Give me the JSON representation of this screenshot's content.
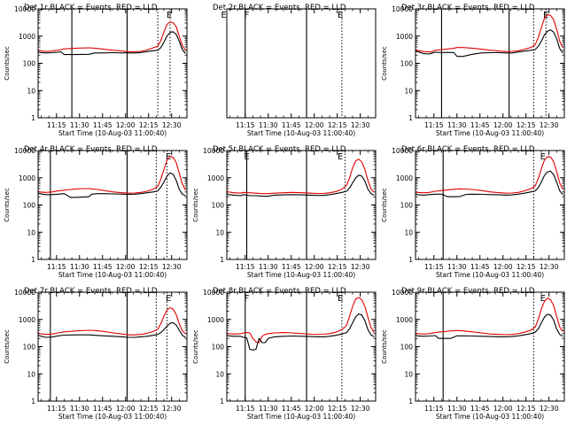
{
  "chart_data": [
    {
      "type": "line",
      "title": "Det 1r  BLACK = Events, RED = LLD",
      "xlabel": "Start Time (10-Aug-03 11:00:40)",
      "ylabel": "Counts/sec",
      "x_tick_labels": [
        "11:15",
        "11:30",
        "11:45",
        "12:00",
        "12:15",
        "12:30"
      ],
      "y_tick_labels": [
        "1",
        "10",
        "100",
        "1000",
        "10000"
      ],
      "xlim_min": [
        3,
        100
      ],
      "ylim": [
        1,
        10000
      ],
      "y_scale": "log",
      "solid_markers_min": [
        25,
        61
      ],
      "dotted_markers_min": [
        81,
        89
      ],
      "flag_label": "E",
      "flag_min": 88.5,
      "x_min": [
        0,
        4,
        8,
        12,
        16,
        18,
        20,
        28,
        36,
        40,
        46,
        52,
        58,
        60,
        62,
        66,
        70,
        74,
        78,
        81,
        83,
        85,
        87,
        89,
        91,
        93,
        95,
        97,
        99
      ],
      "series": [
        {
          "name": "Events",
          "color": "#000000",
          "values": [
            270,
            250,
            240,
            245,
            255,
            265,
            210,
            210,
            215,
            240,
            240,
            245,
            240,
            245,
            240,
            240,
            250,
            270,
            290,
            300,
            380,
            600,
            1000,
            1350,
            1450,
            1150,
            650,
            320,
            230
          ]
        },
        {
          "name": "LLD",
          "color": "#e00000",
          "values": [
            320,
            290,
            270,
            280,
            300,
            320,
            340,
            360,
            370,
            360,
            330,
            300,
            280,
            270,
            265,
            265,
            275,
            310,
            370,
            420,
            700,
            1400,
            2700,
            3300,
            3100,
            2200,
            1000,
            450,
            300
          ]
        }
      ]
    },
    {
      "type": "line",
      "title": "Det 2r  BLACK = Events, RED = LLD",
      "xlabel": "Start Time (10-Aug-03 11:00:40)",
      "ylabel": "",
      "x_tick_labels": [
        "11:15",
        "11:30",
        "11:45",
        "12:00",
        "12:15",
        "12:30"
      ],
      "y_tick_labels": [],
      "xlim_min": [
        3,
        100
      ],
      "ylim": [
        1,
        10000
      ],
      "y_scale": "log",
      "solid_markers_min": [
        15,
        55
      ],
      "dotted_markers_min": [
        78
      ],
      "flag_labels": [
        "E",
        "F",
        "E"
      ],
      "flag_min": [
        1,
        16,
        77
      ],
      "x_min": [],
      "series": []
    },
    {
      "type": "line",
      "title": "Det 3r  BLACK = Events, RED = LLD",
      "xlabel": "Start Time (10-Aug-03 11:00:40)",
      "ylabel": "Counts/sec",
      "x_tick_labels": [
        "11:15",
        "11:30",
        "11:45",
        "12:00",
        "12:15",
        "12:30"
      ],
      "y_tick_labels": [
        "1",
        "10",
        "100",
        "1000",
        "10000"
      ],
      "xlim_min": [
        3,
        100
      ],
      "ylim": [
        1,
        10000
      ],
      "y_scale": "log",
      "solid_markers_min": [
        20,
        64
      ],
      "dotted_markers_min": [
        80,
        88
      ],
      "flag_label": "E",
      "flag_min": 88,
      "x_min": [
        0,
        4,
        8,
        12,
        14,
        16,
        20,
        28,
        30,
        34,
        40,
        46,
        52,
        58,
        62,
        66,
        70,
        74,
        78,
        81,
        83,
        85,
        87,
        89,
        91,
        93,
        95,
        97,
        99
      ],
      "series": [
        {
          "name": "Events",
          "color": "#000000",
          "values": [
            280,
            270,
            230,
            220,
            240,
            255,
            250,
            250,
            180,
            180,
            215,
            240,
            245,
            245,
            240,
            240,
            260,
            280,
            300,
            320,
            420,
            650,
            1100,
            1500,
            1700,
            1400,
            800,
            350,
            240
          ]
        },
        {
          "name": "LLD",
          "color": "#e00000",
          "values": [
            330,
            300,
            270,
            260,
            270,
            300,
            320,
            360,
            380,
            380,
            360,
            330,
            300,
            280,
            270,
            275,
            290,
            330,
            380,
            480,
            900,
            2000,
            4500,
            6000,
            5800,
            4000,
            1800,
            650,
            380
          ]
        }
      ]
    },
    {
      "type": "line",
      "title": "Det 4r  BLACK = Events, RED = LLD",
      "xlabel": "Start Time (10-Aug-03 11:00:40)",
      "ylabel": "Counts/sec",
      "x_tick_labels": [
        "11:15",
        "11:30",
        "11:45",
        "12:00",
        "12:15",
        "12:30"
      ],
      "y_tick_labels": [
        "1",
        "10",
        "100",
        "1000",
        "10000"
      ],
      "xlim_min": [
        3,
        100
      ],
      "ylim": [
        1,
        10000
      ],
      "y_scale": "log",
      "solid_markers_min": [
        11,
        61
      ],
      "dotted_markers_min": [
        80,
        87
      ],
      "flag_label": "E",
      "flag_min": 88,
      "x_min": [
        0,
        4,
        8,
        12,
        16,
        20,
        24,
        28,
        32,
        36,
        38,
        42,
        46,
        52,
        58,
        62,
        66,
        70,
        74,
        78,
        81,
        83,
        85,
        87,
        89,
        91,
        93,
        95,
        97,
        99
      ],
      "series": [
        {
          "name": "Events",
          "color": "#000000",
          "values": [
            270,
            260,
            240,
            240,
            250,
            260,
            190,
            190,
            195,
            200,
            250,
            260,
            260,
            255,
            250,
            245,
            250,
            260,
            280,
            300,
            330,
            450,
            700,
            1150,
            1500,
            1350,
            800,
            380,
            250,
            220
          ]
        },
        {
          "name": "LLD",
          "color": "#e00000",
          "values": [
            320,
            300,
            290,
            300,
            330,
            350,
            370,
            390,
            400,
            400,
            390,
            370,
            340,
            300,
            280,
            270,
            275,
            290,
            320,
            380,
            480,
            900,
            2000,
            4500,
            6000,
            5600,
            3600,
            1500,
            600,
            350
          ]
        }
      ]
    },
    {
      "type": "line",
      "title": "Det 5r  BLACK = Events, RED = LLD",
      "xlabel": "Start Time (10-Aug-03 11:00:40)",
      "ylabel": "Counts/sec",
      "x_tick_labels": [
        "11:15",
        "11:30",
        "11:45",
        "12:00",
        "12:15",
        "12:30"
      ],
      "y_tick_labels": [
        "1",
        "10",
        "100",
        "1000",
        "10000"
      ],
      "xlim_min": [
        3,
        100
      ],
      "ylim": [
        1,
        10000
      ],
      "y_scale": "log",
      "solid_markers_min": [
        16,
        55
      ],
      "dotted_markers_min": [
        80
      ],
      "flag_labels": [
        "E",
        "E"
      ],
      "flag_min": [
        16,
        77
      ],
      "x_min": [
        0,
        4,
        8,
        12,
        14,
        18,
        22,
        26,
        30,
        34,
        40,
        46,
        52,
        58,
        62,
        66,
        70,
        74,
        78,
        81,
        83,
        85,
        87,
        89,
        91,
        93,
        95,
        97,
        99
      ],
      "series": [
        {
          "name": "Events",
          "color": "#000000",
          "values": [
            270,
            240,
            230,
            220,
            240,
            220,
            220,
            210,
            210,
            230,
            235,
            240,
            235,
            230,
            225,
            225,
            240,
            260,
            290,
            320,
            420,
            650,
            1000,
            1250,
            1150,
            750,
            380,
            260,
            230
          ]
        },
        {
          "name": "LLD",
          "color": "#e00000",
          "values": [
            330,
            300,
            280,
            270,
            290,
            280,
            270,
            260,
            260,
            270,
            280,
            290,
            280,
            270,
            265,
            265,
            280,
            310,
            380,
            520,
            1000,
            2300,
            4200,
            4800,
            3800,
            2000,
            800,
            380,
            300
          ]
        }
      ]
    },
    {
      "type": "line",
      "title": "Det 6r  BLACK = Events, RED = LLD",
      "xlabel": "Start Time (10-Aug-03 11:00:40)",
      "ylabel": "Counts/sec",
      "x_tick_labels": [
        "11:15",
        "11:30",
        "11:45",
        "12:00",
        "12:15",
        "12:30"
      ],
      "y_tick_labels": [
        "1",
        "10",
        "100",
        "1000",
        "10000"
      ],
      "xlim_min": [
        3,
        100
      ],
      "ylim": [
        1,
        10000
      ],
      "y_scale": "log",
      "solid_markers_min": [
        21
      ],
      "dotted_markers_min": [
        80
      ],
      "flag_label": "E",
      "flag_min": 86,
      "x_min": [
        0,
        4,
        8,
        12,
        16,
        20,
        24,
        28,
        32,
        36,
        40,
        46,
        52,
        58,
        62,
        66,
        70,
        74,
        78,
        81,
        83,
        85,
        87,
        89,
        91,
        93,
        95,
        97,
        99
      ],
      "series": [
        {
          "name": "Events",
          "color": "#000000",
          "values": [
            270,
            240,
            230,
            240,
            250,
            250,
            200,
            200,
            205,
            245,
            250,
            245,
            240,
            235,
            230,
            235,
            250,
            270,
            300,
            330,
            430,
            700,
            1200,
            1650,
            1750,
            1300,
            700,
            330,
            240
          ]
        },
        {
          "name": "LLD",
          "color": "#e00000",
          "values": [
            320,
            290,
            280,
            290,
            320,
            340,
            360,
            380,
            390,
            385,
            370,
            340,
            300,
            280,
            270,
            275,
            290,
            330,
            390,
            500,
            950,
            2100,
            4400,
            6000,
            5800,
            3900,
            1700,
            650,
            380
          ]
        }
      ]
    },
    {
      "type": "line",
      "title": "Det 7r  BLACK = Events, RED = LLD",
      "xlabel": "Start Time (10-Aug-03 11:00:40)",
      "ylabel": "Counts/sec",
      "x_tick_labels": [
        "11:15",
        "11:30",
        "11:45",
        "12:00",
        "12:15",
        "12:30"
      ],
      "y_tick_labels": [
        "1",
        "10",
        "100",
        "1000",
        "10000"
      ],
      "xlim_min": [
        3,
        100
      ],
      "ylim": [
        1,
        10000
      ],
      "y_scale": "log",
      "solid_markers_min": [
        11,
        61
      ],
      "dotted_markers_min": [
        80,
        87
      ],
      "flag_label": "E",
      "flag_min": 88,
      "x_min": [
        0,
        4,
        8,
        12,
        16,
        20,
        28,
        36,
        40,
        46,
        52,
        58,
        62,
        66,
        70,
        74,
        78,
        81,
        83,
        85,
        87,
        89,
        91,
        93,
        95,
        97,
        99
      ],
      "series": [
        {
          "name": "Events",
          "color": "#000000",
          "values": [
            270,
            250,
            220,
            225,
            250,
            265,
            270,
            270,
            260,
            250,
            240,
            230,
            220,
            220,
            230,
            240,
            260,
            280,
            330,
            420,
            560,
            720,
            760,
            620,
            400,
            260,
            220
          ]
        },
        {
          "name": "LLD",
          "color": "#e00000",
          "values": [
            330,
            300,
            280,
            290,
            320,
            350,
            380,
            400,
            390,
            360,
            320,
            290,
            270,
            270,
            280,
            310,
            360,
            440,
            700,
            1300,
            2200,
            2700,
            2400,
            1500,
            700,
            380,
            300
          ]
        }
      ]
    },
    {
      "type": "line",
      "title": "Det 8r  BLACK = Events, RED = LLD",
      "xlabel": "Start Time (10-Aug-03 11:00:40)",
      "ylabel": "Counts/sec",
      "x_tick_labels": [
        "11:15",
        "11:30",
        "11:45",
        "12:00",
        "12:15",
        "12:30"
      ],
      "y_tick_labels": [
        "1",
        "10",
        "100",
        "1000",
        "10000"
      ],
      "xlim_min": [
        3,
        100
      ],
      "ylim": [
        1,
        10000
      ],
      "y_scale": "log",
      "solid_markers_min": [
        15,
        55
      ],
      "dotted_markers_min": [
        78
      ],
      "flag_labels": [
        "F",
        "E"
      ],
      "flag_min": [
        16,
        77
      ],
      "x_min": [
        0,
        4,
        8,
        12,
        14,
        16,
        18,
        20,
        22,
        24,
        26,
        28,
        30,
        34,
        40,
        46,
        52,
        58,
        62,
        66,
        70,
        74,
        78,
        81,
        83,
        85,
        87,
        89,
        91,
        93,
        95,
        97,
        99
      ],
      "series": [
        {
          "name": "Events",
          "color": "#000000",
          "values": [
            270,
            250,
            240,
            240,
            220,
            210,
            80,
            75,
            80,
            200,
            140,
            140,
            200,
            230,
            240,
            245,
            240,
            235,
            230,
            230,
            240,
            260,
            290,
            330,
            450,
            750,
            1250,
            1600,
            1450,
            900,
            420,
            270,
            230
          ]
        },
        {
          "name": "LLD",
          "color": "#e00000",
          "values": [
            330,
            300,
            290,
            300,
            320,
            330,
            320,
            200,
            150,
            140,
            240,
            280,
            300,
            320,
            330,
            320,
            300,
            285,
            280,
            285,
            300,
            340,
            420,
            600,
            1300,
            3000,
            5600,
            6400,
            5200,
            3000,
            1200,
            500,
            330
          ]
        }
      ]
    },
    {
      "type": "line",
      "title": "Det 9r  BLACK = Events, RED = LLD",
      "xlabel": "Start Time (10-Aug-03 11:00:40)",
      "ylabel": "Counts/sec",
      "x_tick_labels": [
        "11:15",
        "11:30",
        "11:45",
        "12:00",
        "12:15",
        "12:30"
      ],
      "y_tick_labels": [
        "1",
        "10",
        "100",
        "1000",
        "10000"
      ],
      "xlim_min": [
        3,
        100
      ],
      "ylim": [
        1,
        10000
      ],
      "y_scale": "log",
      "solid_markers_min": [
        21
      ],
      "dotted_markers_min": [
        80
      ],
      "flag_label": "E",
      "flag_min": 86,
      "x_min": [
        0,
        4,
        8,
        12,
        16,
        18,
        22,
        26,
        30,
        34,
        40,
        46,
        52,
        58,
        62,
        66,
        70,
        74,
        78,
        81,
        83,
        85,
        87,
        89,
        91,
        93,
        95,
        97,
        99
      ],
      "series": [
        {
          "name": "Events",
          "color": "#000000",
          "values": [
            270,
            250,
            240,
            245,
            255,
            200,
            200,
            200,
            250,
            250,
            245,
            240,
            235,
            230,
            230,
            235,
            250,
            270,
            300,
            340,
            450,
            750,
            1200,
            1550,
            1450,
            950,
            450,
            280,
            240
          ]
        },
        {
          "name": "LLD",
          "color": "#e00000",
          "values": [
            330,
            300,
            290,
            300,
            330,
            340,
            360,
            380,
            390,
            380,
            350,
            320,
            290,
            280,
            275,
            280,
            300,
            340,
            400,
            520,
            1000,
            2400,
            4600,
            6000,
            5400,
            3200,
            1300,
            520,
            360
          ]
        }
      ]
    }
  ]
}
